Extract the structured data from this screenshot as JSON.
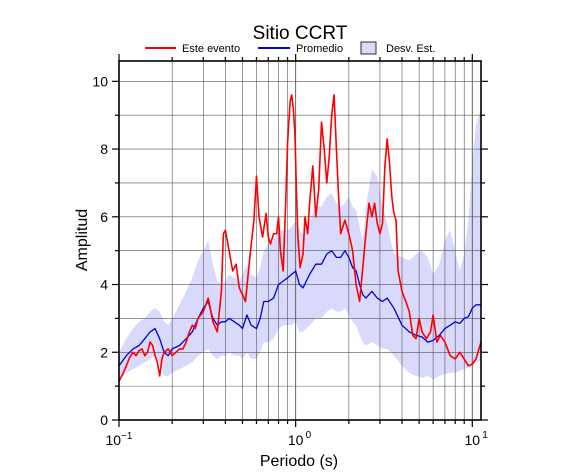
{
  "chart_data": {
    "type": "line",
    "title": "Sitio CCRT",
    "xlabel": "Periodo (s)",
    "ylabel": "Amplitud",
    "xscale": "log",
    "xlim": [
      0.1,
      11.2
    ],
    "ylim": [
      0,
      10.6
    ],
    "grid": "on",
    "legend_placement": "top",
    "x_ticks": [
      {
        "value": 0.1,
        "base": "10",
        "exp": "−1"
      },
      {
        "value": 1,
        "label": "10"
      },
      {
        "value": 10,
        "label": "10"
      }
    ],
    "y_ticks": [
      {
        "value": 0,
        "label": "0"
      },
      {
        "value": 2,
        "label": "2"
      },
      {
        "value": 4,
        "label": "4"
      },
      {
        "value": 6,
        "label": "6"
      },
      {
        "value": 8,
        "label": "8"
      },
      {
        "value": 10,
        "label": "10"
      }
    ],
    "legend": [
      {
        "key": "event",
        "label": "Este evento",
        "color": "#ff0000"
      },
      {
        "key": "mean",
        "label": "Promedio",
        "color": "#0000e0"
      },
      {
        "key": "band",
        "label": "Desv. Est.",
        "color": "#d9d9fb"
      }
    ],
    "series": [
      {
        "name": "Este evento",
        "color": "#ff0000",
        "x": [
          0.1,
          0.105,
          0.11,
          0.115,
          0.12,
          0.125,
          0.13,
          0.135,
          0.14,
          0.145,
          0.15,
          0.155,
          0.16,
          0.165,
          0.17,
          0.175,
          0.18,
          0.19,
          0.2,
          0.21,
          0.22,
          0.23,
          0.24,
          0.25,
          0.26,
          0.27,
          0.28,
          0.3,
          0.32,
          0.34,
          0.36,
          0.38,
          0.39,
          0.4,
          0.42,
          0.44,
          0.46,
          0.48,
          0.5,
          0.52,
          0.55,
          0.58,
          0.6,
          0.62,
          0.65,
          0.68,
          0.7,
          0.72,
          0.75,
          0.78,
          0.8,
          0.82,
          0.85,
          0.88,
          0.9,
          0.93,
          0.95,
          0.97,
          0.99,
          1.01,
          1.03,
          1.06,
          1.1,
          1.13,
          1.17,
          1.2,
          1.25,
          1.3,
          1.35,
          1.4,
          1.45,
          1.5,
          1.55,
          1.6,
          1.65,
          1.7,
          1.75,
          1.8,
          1.9,
          2.0,
          2.1,
          2.2,
          2.3,
          2.4,
          2.5,
          2.6,
          2.7,
          2.8,
          2.9,
          3.0,
          3.1,
          3.2,
          3.3,
          3.4,
          3.5,
          3.6,
          3.7,
          3.8,
          4.0,
          4.2,
          4.4,
          4.6,
          4.8,
          5.0,
          5.2,
          5.5,
          5.8,
          6.0,
          6.3,
          6.6,
          7.0,
          7.5,
          8.0,
          8.5,
          9.0,
          9.5,
          10.0,
          10.5,
          11.2
        ],
        "y": [
          1.15,
          1.35,
          1.6,
          1.85,
          2.0,
          1.9,
          2.05,
          2.1,
          1.9,
          2.0,
          2.3,
          2.2,
          1.9,
          1.7,
          1.3,
          1.8,
          2.0,
          2.1,
          1.9,
          2.0,
          2.1,
          2.1,
          2.3,
          2.6,
          2.8,
          2.7,
          3.0,
          3.2,
          3.6,
          2.9,
          2.6,
          3.8,
          5.5,
          5.6,
          5.0,
          4.4,
          4.6,
          3.9,
          3.7,
          3.5,
          4.8,
          5.9,
          7.2,
          6.0,
          5.4,
          6.1,
          5.4,
          5.2,
          5.5,
          5.5,
          6.0,
          5.0,
          4.4,
          6.5,
          8.2,
          9.4,
          9.6,
          9.2,
          8.5,
          6.8,
          5.4,
          4.5,
          4.9,
          6.0,
          5.5,
          6.4,
          7.5,
          6.0,
          6.8,
          8.8,
          8.0,
          7.0,
          7.8,
          9.0,
          9.6,
          8.0,
          6.6,
          5.5,
          5.9,
          5.5,
          5.0,
          4.0,
          3.5,
          4.5,
          5.5,
          6.4,
          6.0,
          6.4,
          5.8,
          5.5,
          5.8,
          7.5,
          8.3,
          7.6,
          6.6,
          6.1,
          5.9,
          4.4,
          3.8,
          3.5,
          3.2,
          2.5,
          2.4,
          3.0,
          2.6,
          2.4,
          2.6,
          3.1,
          2.3,
          2.5,
          2.3,
          1.9,
          1.8,
          2.0,
          1.8,
          1.6,
          1.65,
          1.8,
          2.3
        ]
      },
      {
        "name": "Promedio",
        "color": "#0000e0",
        "x": [
          0.1,
          0.11,
          0.12,
          0.13,
          0.14,
          0.15,
          0.16,
          0.17,
          0.18,
          0.19,
          0.2,
          0.22,
          0.24,
          0.26,
          0.28,
          0.3,
          0.32,
          0.34,
          0.36,
          0.38,
          0.4,
          0.42,
          0.45,
          0.48,
          0.5,
          0.53,
          0.56,
          0.6,
          0.63,
          0.66,
          0.7,
          0.75,
          0.8,
          0.85,
          0.9,
          0.95,
          1.0,
          1.05,
          1.1,
          1.2,
          1.3,
          1.4,
          1.5,
          1.6,
          1.7,
          1.8,
          1.9,
          2.0,
          2.1,
          2.2,
          2.3,
          2.4,
          2.5,
          2.7,
          2.9,
          3.1,
          3.3,
          3.6,
          4.0,
          4.4,
          4.8,
          5.2,
          5.6,
          6.0,
          6.5,
          7.0,
          7.5,
          8.0,
          8.5,
          9.0,
          9.5,
          10.0,
          10.5,
          11.2
        ],
        "y": [
          1.6,
          1.9,
          2.1,
          2.2,
          2.4,
          2.6,
          2.7,
          2.4,
          2.0,
          1.9,
          2.1,
          2.2,
          2.4,
          2.6,
          3.0,
          3.3,
          3.5,
          3.0,
          2.8,
          2.9,
          2.9,
          3.0,
          2.9,
          2.8,
          2.7,
          3.1,
          2.8,
          2.7,
          3.0,
          3.5,
          3.5,
          3.6,
          4.0,
          4.1,
          4.2,
          4.3,
          4.4,
          4.0,
          3.9,
          4.3,
          4.6,
          4.6,
          4.9,
          5.0,
          4.8,
          4.8,
          5.0,
          4.8,
          4.5,
          4.4,
          4.0,
          3.7,
          3.6,
          3.8,
          3.6,
          3.5,
          3.6,
          3.3,
          2.8,
          2.6,
          2.5,
          2.45,
          2.3,
          2.35,
          2.5,
          2.7,
          2.8,
          2.9,
          2.85,
          3.0,
          3.05,
          3.3,
          3.4,
          3.4
        ]
      }
    ],
    "band": {
      "name": "Desv. Est.",
      "color": "#d9d9fb",
      "x": [
        0.1,
        0.11,
        0.12,
        0.13,
        0.14,
        0.15,
        0.16,
        0.17,
        0.18,
        0.19,
        0.2,
        0.22,
        0.24,
        0.26,
        0.28,
        0.3,
        0.32,
        0.34,
        0.36,
        0.38,
        0.4,
        0.42,
        0.45,
        0.48,
        0.5,
        0.53,
        0.56,
        0.6,
        0.63,
        0.66,
        0.7,
        0.75,
        0.8,
        0.85,
        0.9,
        0.95,
        1.0,
        1.05,
        1.1,
        1.2,
        1.3,
        1.4,
        1.5,
        1.6,
        1.7,
        1.8,
        1.9,
        2.0,
        2.1,
        2.2,
        2.3,
        2.4,
        2.5,
        2.7,
        2.9,
        3.1,
        3.3,
        3.6,
        4.0,
        4.4,
        4.8,
        5.2,
        5.6,
        6.0,
        6.5,
        7.0,
        7.5,
        8.0,
        8.5,
        9.0,
        9.5,
        10.0,
        10.5,
        11.2
      ],
      "upper": [
        2.0,
        2.4,
        2.7,
        2.9,
        3.0,
        3.2,
        3.3,
        3.2,
        2.9,
        2.8,
        3.0,
        3.4,
        3.8,
        4.2,
        4.7,
        5.0,
        5.3,
        4.6,
        4.1,
        4.0,
        4.1,
        4.3,
        4.2,
        4.1,
        4.3,
        4.6,
        4.3,
        4.2,
        4.5,
        5.0,
        5.2,
        5.3,
        5.6,
        5.6,
        5.6,
        5.7,
        5.9,
        5.6,
        5.5,
        5.9,
        6.3,
        6.3,
        6.6,
        6.7,
        6.4,
        6.3,
        6.4,
        6.6,
        6.3,
        6.2,
        5.7,
        5.3,
        6.3,
        7.4,
        7.2,
        6.3,
        5.8,
        4.9,
        4.8,
        4.7,
        4.9,
        5.0,
        4.8,
        4.3,
        4.6,
        5.3,
        5.6,
        5.0,
        4.4,
        4.9,
        5.9,
        7.6,
        8.7,
        9.2
      ],
      "lower": [
        1.2,
        1.4,
        1.5,
        1.6,
        1.7,
        1.8,
        1.9,
        1.7,
        1.3,
        1.3,
        1.4,
        1.5,
        1.6,
        1.7,
        1.9,
        2.0,
        2.1,
        1.9,
        1.8,
        1.9,
        1.9,
        2.0,
        1.9,
        1.9,
        1.8,
        2.0,
        1.8,
        1.8,
        2.0,
        2.3,
        2.3,
        2.4,
        2.7,
        2.8,
        2.8,
        2.8,
        2.9,
        2.6,
        2.6,
        2.8,
        3.0,
        3.0,
        3.2,
        3.3,
        3.2,
        3.2,
        3.3,
        3.1,
        2.9,
        2.8,
        2.5,
        2.3,
        2.2,
        2.3,
        2.2,
        2.1,
        2.1,
        1.9,
        1.6,
        1.4,
        1.3,
        1.25,
        1.3,
        1.2,
        1.3,
        1.35,
        1.4,
        1.4,
        1.45,
        1.5,
        1.55,
        1.6,
        1.7,
        1.75
      ]
    }
  }
}
